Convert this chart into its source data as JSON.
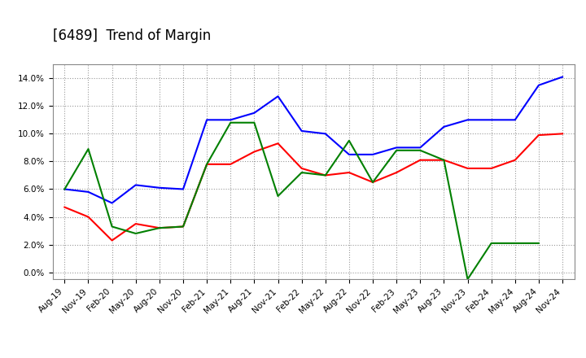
{
  "title": "[6489]  Trend of Margin",
  "x_labels": [
    "Aug-19",
    "Nov-19",
    "Feb-20",
    "May-20",
    "Aug-20",
    "Nov-20",
    "Feb-21",
    "May-21",
    "Aug-21",
    "Nov-21",
    "Feb-22",
    "May-22",
    "Aug-22",
    "Nov-22",
    "Feb-23",
    "May-23",
    "Aug-23",
    "Nov-23",
    "Feb-24",
    "May-24",
    "Aug-24",
    "Nov-24"
  ],
  "ordinary_income": [
    6.0,
    5.8,
    5.0,
    6.3,
    6.1,
    6.0,
    11.0,
    11.0,
    11.5,
    12.7,
    10.2,
    10.0,
    8.5,
    8.5,
    9.0,
    9.0,
    10.5,
    11.0,
    11.0,
    11.0,
    13.5,
    14.1
  ],
  "net_income": [
    4.7,
    4.0,
    2.3,
    3.5,
    3.2,
    3.3,
    7.8,
    7.8,
    8.7,
    9.3,
    7.5,
    7.0,
    7.2,
    6.5,
    7.2,
    8.1,
    8.1,
    7.5,
    7.5,
    8.1,
    9.9,
    10.0
  ],
  "operating_cashflow": [
    6.0,
    8.9,
    3.3,
    2.8,
    3.2,
    3.3,
    7.8,
    10.8,
    10.8,
    5.5,
    7.2,
    7.0,
    9.5,
    6.5,
    8.8,
    8.8,
    8.1,
    -0.5,
    2.1,
    2.1,
    2.1,
    null
  ],
  "ylim": [
    -0.5,
    15.0
  ],
  "yticks": [
    0.0,
    2.0,
    4.0,
    6.0,
    8.0,
    10.0,
    12.0,
    14.0
  ],
  "line_color_ordinary": "#0000FF",
  "line_color_net": "#FF0000",
  "line_color_cashflow": "#008000",
  "background_color": "#FFFFFF",
  "grid_color": "#999999",
  "title_fontsize": 12,
  "tick_fontsize": 7.5
}
